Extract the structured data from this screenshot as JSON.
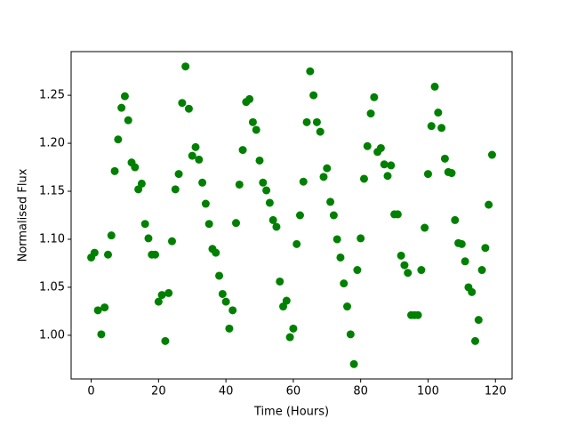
{
  "chart_data": {
    "type": "scatter",
    "xlabel": "Time (Hours)",
    "ylabel": "Normalised Flux",
    "color": "#008000",
    "x": [
      0,
      1,
      2,
      3,
      4,
      5,
      6,
      7,
      8,
      9,
      10,
      11,
      12,
      13,
      14,
      15,
      16,
      17,
      18,
      19,
      20,
      21,
      22,
      23,
      24,
      25,
      26,
      27,
      28,
      29,
      30,
      31,
      32,
      33,
      34,
      35,
      36,
      37,
      38,
      39,
      40,
      41,
      42,
      43,
      44,
      45,
      46,
      47,
      48,
      49,
      50,
      51,
      52,
      53,
      54,
      55,
      56,
      57,
      58,
      59,
      60,
      61,
      62,
      63,
      64,
      65,
      66,
      67,
      68,
      69,
      70,
      71,
      72,
      73,
      74,
      75,
      76,
      77,
      78,
      79,
      80,
      81,
      82,
      83,
      84,
      85,
      86,
      87,
      88,
      89,
      90,
      91,
      92,
      93,
      94,
      95,
      96,
      97,
      98,
      99,
      100,
      101,
      102,
      103,
      104,
      105,
      106,
      107,
      108,
      109,
      110,
      111,
      112,
      113,
      114,
      115,
      116,
      117,
      118,
      119
    ],
    "values": [
      1.081,
      1.086,
      1.026,
      1.001,
      1.029,
      1.084,
      1.104,
      1.171,
      1.204,
      1.237,
      1.249,
      1.224,
      1.18,
      1.175,
      1.152,
      1.158,
      1.116,
      1.101,
      1.084,
      1.084,
      1.035,
      1.042,
      0.994,
      1.044,
      1.098,
      1.152,
      1.168,
      1.242,
      1.28,
      1.236,
      1.187,
      1.196,
      1.183,
      1.159,
      1.137,
      1.116,
      1.09,
      1.086,
      1.062,
      1.043,
      1.035,
      1.007,
      1.026,
      1.117,
      1.157,
      1.193,
      1.243,
      1.246,
      1.222,
      1.214,
      1.182,
      1.159,
      1.151,
      1.138,
      1.12,
      1.113,
      1.056,
      1.03,
      1.036,
      0.998,
      1.007,
      1.095,
      1.125,
      1.16,
      1.222,
      1.275,
      1.25,
      1.222,
      1.212,
      1.165,
      1.174,
      1.139,
      1.125,
      1.1,
      1.081,
      1.054,
      1.03,
      1.001,
      0.97,
      1.068,
      1.101,
      1.163,
      1.197,
      1.231,
      1.248,
      1.191,
      1.195,
      1.178,
      1.166,
      1.177,
      1.126,
      1.126,
      1.083,
      1.073,
      1.065,
      1.021,
      1.021,
      1.021,
      1.068,
      1.112,
      1.168,
      1.218,
      1.259,
      1.232,
      1.216,
      1.184,
      1.17,
      1.169,
      1.12,
      1.096,
      1.095,
      1.077,
      1.05,
      1.045,
      0.994,
      1.016,
      1.068,
      1.091,
      1.136,
      1.188
    ],
    "xlim": [
      -5.95,
      124.95
    ],
    "xticks": [
      0,
      20,
      40,
      60,
      80,
      100,
      120
    ],
    "ylim": [
      0.9545,
      1.2955
    ],
    "yticks": [
      {
        "value": 1.0,
        "label": "1.00"
      },
      1.05,
      {
        "value": 1.1,
        "label": "1.10"
      },
      1.15,
      {
        "value": 1.2,
        "label": "1.20"
      },
      1.25
    ]
  }
}
